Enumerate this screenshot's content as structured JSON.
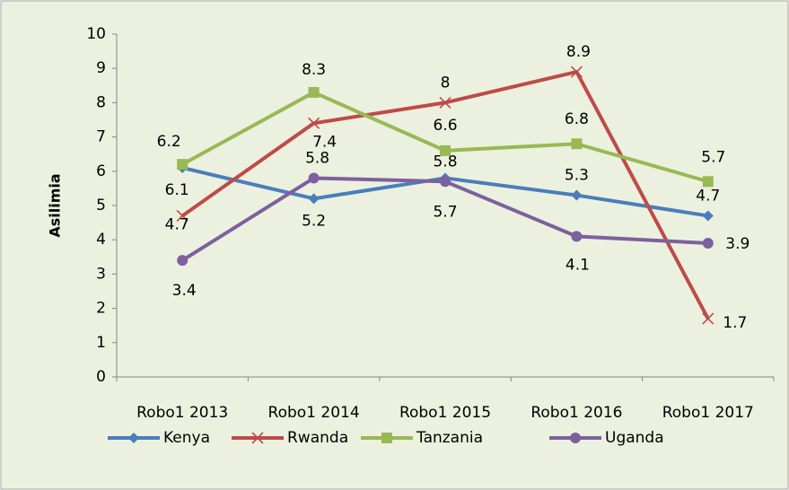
{
  "chart_data": {
    "type": "line",
    "y_label": "Asilimia",
    "categories": [
      "Robo1 2013",
      "Robo1 2014",
      "Robo1 2015",
      "Robo1 2016",
      "Robo1 2017"
    ],
    "series": [
      {
        "name": "Kenya",
        "color": "#4a7ebb",
        "marker": "diamond",
        "values": [
          6.1,
          5.2,
          5.8,
          5.3,
          4.7
        ]
      },
      {
        "name": "Rwanda",
        "color": "#be4b48",
        "marker": "x",
        "values": [
          4.7,
          7.4,
          8,
          8.9,
          1.7
        ]
      },
      {
        "name": "Tanzania",
        "color": "#98b954",
        "marker": "square",
        "values": [
          6.2,
          8.3,
          6.6,
          6.8,
          5.7
        ]
      },
      {
        "name": "Uganda",
        "color": "#7d60a0",
        "marker": "circle",
        "values": [
          3.4,
          5.8,
          5.7,
          4.1,
          3.9
        ]
      }
    ],
    "ylim": [
      0,
      10
    ],
    "yticks": [
      0,
      1,
      2,
      3,
      4,
      5,
      6,
      7,
      8,
      9,
      10
    ],
    "grid": false,
    "legend": "bottom"
  }
}
